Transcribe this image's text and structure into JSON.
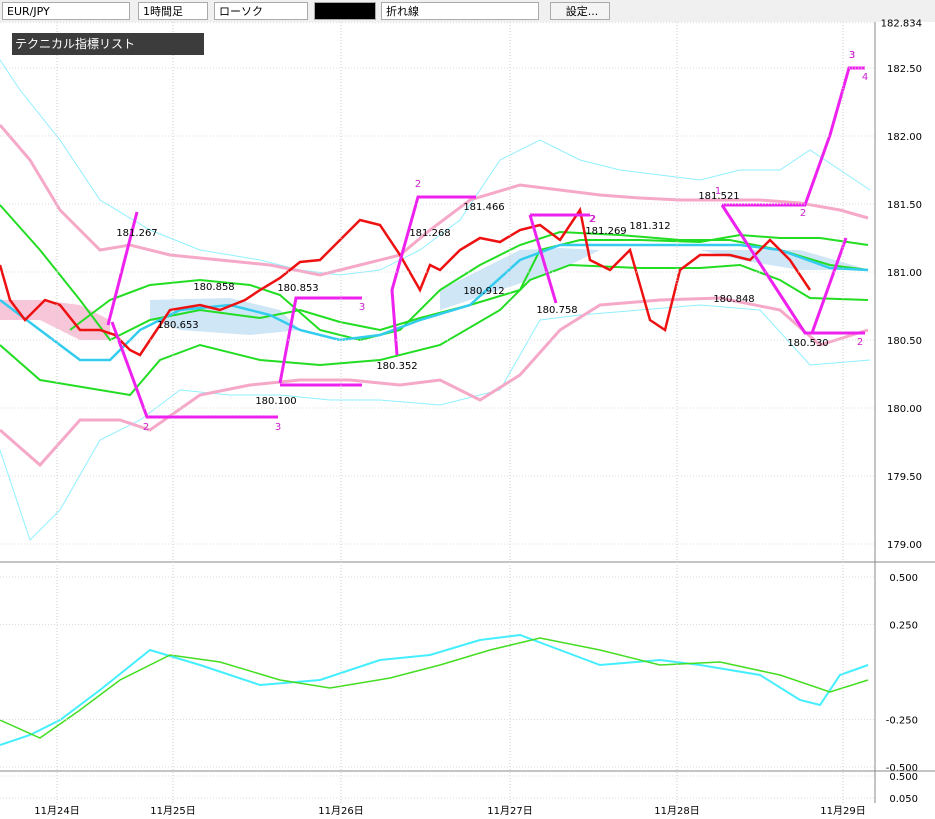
{
  "toolbar": {
    "symbol": "EUR/JPY",
    "timeframe": "1時間足",
    "style": "ローソク",
    "line_type": "折れ線",
    "settings": "設定..."
  },
  "panel_title": "テクニカル指標リスト",
  "price_axis": {
    "ylim": [
      179.0,
      182.834
    ],
    "ticks": [
      182.834,
      {
        "value": 182.5,
        "label": "182.50"
      },
      {
        "value": 182,
        "label": "182.00"
      },
      {
        "value": 181.5,
        "label": "181.50"
      },
      {
        "value": 181,
        "label": "181.00"
      },
      {
        "value": 180.5,
        "label": "180.50"
      },
      {
        "value": 180,
        "label": "180.00"
      },
      {
        "value": 179.5,
        "label": "179.50"
      },
      {
        "value": 179,
        "label": "179.00"
      }
    ]
  },
  "macd_axis": {
    "ticks": [
      {
        "value": 0.5,
        "label": "0.500"
      },
      {
        "value": 0.25,
        "label": "0.250"
      },
      {
        "value": -0.25,
        "label": "-0.250"
      },
      {
        "value": -0.5,
        "label": "-0.500"
      }
    ]
  },
  "sub_axis": {
    "ticks": [
      {
        "value": 0.5,
        "label": "0.500"
      },
      {
        "value": 0.05,
        "label": "0.050"
      }
    ]
  },
  "dates": [
    "11月24日",
    "11月25日",
    "11月26日",
    "11月27日",
    "11月28日",
    "11月29日"
  ],
  "price_labels": [
    "181.267",
    "180.858",
    "180.653",
    "180.853",
    "180.100",
    "180.352",
    "181.268",
    "180.912",
    "181.466",
    "180.758",
    "181.269",
    "181.312",
    "181.521",
    "180.848",
    "180.530"
  ],
  "wave_labels": [
    "2",
    "3",
    "2",
    "3",
    "3",
    "2",
    "2",
    "1",
    "2",
    "3",
    "4",
    "2"
  ]
}
